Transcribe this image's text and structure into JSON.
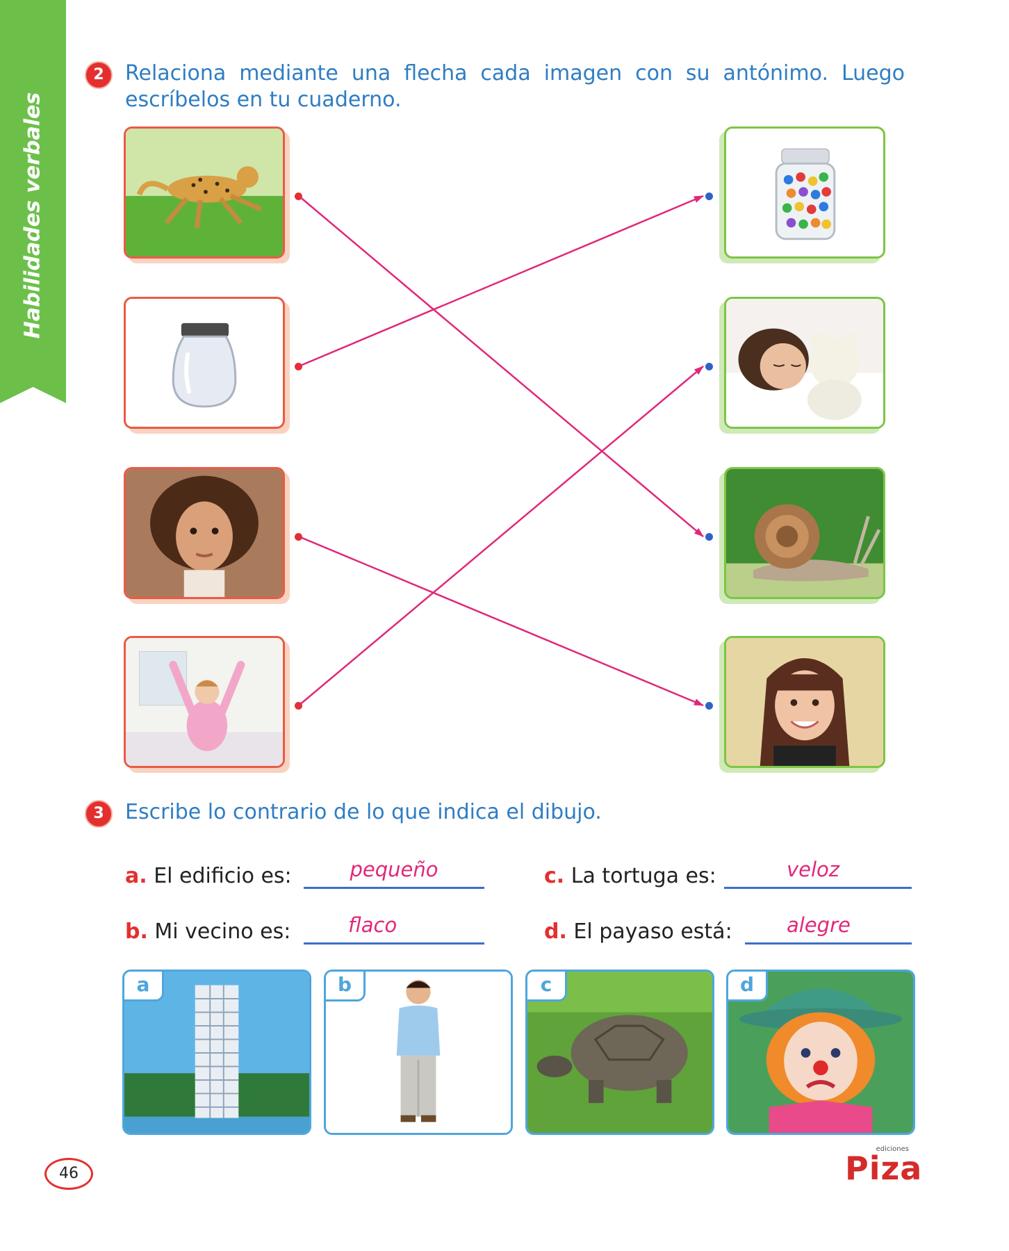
{
  "side_tab": {
    "label": "Habilidades verbales"
  },
  "exercise2": {
    "number": "2",
    "instruction_line1": "Relaciona mediante una flecha cada imagen con su antónimo. Luego",
    "instruction_line2": "escríbelos en tu cuaderno.",
    "left_images": [
      "cheetah-photo",
      "empty-jar-photo",
      "curly-hair-girl-photo",
      "girl-waking-up-photo"
    ],
    "right_images": [
      "marbles-jar-photo",
      "sleeping-girl-photo",
      "snail-photo",
      "straight-hair-girl-photo"
    ],
    "connections": [
      {
        "from": 0,
        "to": 2
      },
      {
        "from": 1,
        "to": 0
      },
      {
        "from": 2,
        "to": 3
      },
      {
        "from": 3,
        "to": 1
      }
    ],
    "colors": {
      "left_border": "#ea5a45",
      "right_border": "#7cc544",
      "arrow": "#e0287a"
    }
  },
  "exercise3": {
    "number": "3",
    "instruction": "Escribe lo contrario de lo que indica el dibujo.",
    "items": [
      {
        "letter": "a.",
        "prompt": "El edificio es:",
        "answer": "pequeño"
      },
      {
        "letter": "b.",
        "prompt": "Mi vecino es:",
        "answer": "flaco"
      },
      {
        "letter": "c.",
        "prompt": "La tortuga es:",
        "answer": "veloz"
      },
      {
        "letter": "d.",
        "prompt": "El payaso está:",
        "answer": "alegre"
      }
    ],
    "pictures": [
      {
        "tag": "a",
        "icon": "building-photo"
      },
      {
        "tag": "b",
        "icon": "boy-photo"
      },
      {
        "tag": "c",
        "icon": "tortoise-photo"
      },
      {
        "tag": "d",
        "icon": "sad-clown-photo"
      }
    ]
  },
  "footer": {
    "page_number": "46",
    "brand_small": "ediciones",
    "brand": "Piza"
  }
}
